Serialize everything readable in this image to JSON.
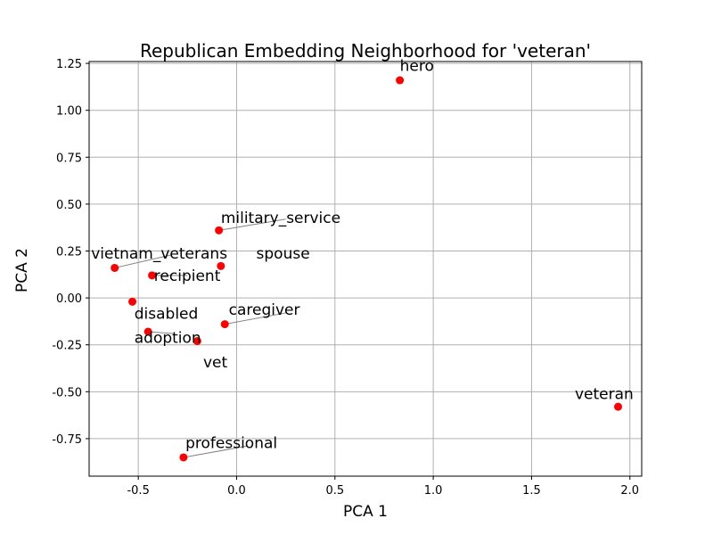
{
  "chart_data": {
    "type": "scatter",
    "title": "Republican Embedding Neighborhood for 'veteran'",
    "xlabel": "PCA 1",
    "ylabel": "PCA 2",
    "xlim": [
      -0.75,
      2.06
    ],
    "ylim": [
      -0.95,
      1.26
    ],
    "xticks": [
      "-0.5",
      "0.0",
      "0.5",
      "1.0",
      "1.5",
      "2.0"
    ],
    "xtick_values": [
      -0.5,
      0.0,
      0.5,
      1.0,
      1.5,
      2.0
    ],
    "yticks": [
      "-0.75",
      "-0.50",
      "-0.25",
      "0.00",
      "0.25",
      "0.50",
      "0.75",
      "1.00",
      "1.25"
    ],
    "ytick_values": [
      -0.75,
      -0.5,
      -0.25,
      0.0,
      0.25,
      0.5,
      0.75,
      1.0,
      1.25
    ],
    "grid": true,
    "point_color": "#ff0000",
    "points": [
      {
        "label": "hero",
        "x": 0.83,
        "y": 1.16,
        "label_x": 0.83,
        "label_y": 1.21
      },
      {
        "label": "military_service",
        "x": -0.09,
        "y": 0.36,
        "label_x": -0.08,
        "label_y": 0.4
      },
      {
        "label": "vietnam_veterans",
        "x": -0.62,
        "y": 0.16,
        "label_x": -0.74,
        "label_y": 0.21
      },
      {
        "label": "spouse",
        "x": -0.08,
        "y": 0.17,
        "label_x": 0.1,
        "label_y": 0.21
      },
      {
        "label": "recipient",
        "x": -0.43,
        "y": 0.12,
        "label_x": -0.42,
        "label_y": 0.09
      },
      {
        "label": "disabled",
        "x": -0.53,
        "y": -0.02,
        "label_x": -0.52,
        "label_y": -0.11
      },
      {
        "label": "caregiver",
        "x": -0.06,
        "y": -0.14,
        "label_x": -0.04,
        "label_y": -0.09
      },
      {
        "label": "adoption",
        "x": -0.45,
        "y": -0.18,
        "label_x": -0.52,
        "label_y": -0.24
      },
      {
        "label": "vet",
        "x": -0.2,
        "y": -0.23,
        "label_x": -0.17,
        "label_y": -0.37
      },
      {
        "label": "veteran",
        "x": 1.94,
        "y": -0.58,
        "label_x": 1.72,
        "label_y": -0.54
      },
      {
        "label": "professional",
        "x": -0.27,
        "y": -0.85,
        "label_x": -0.26,
        "label_y": -0.8
      }
    ],
    "leaders": [
      {
        "from": "military_service",
        "x2": 0.25,
        "y2": 0.42
      },
      {
        "from": "vietnam_veterans",
        "x2": -0.33,
        "y2": 0.23
      },
      {
        "from": "recipient",
        "x2": -0.25,
        "y2": 0.12
      },
      {
        "from": "caregiver",
        "x2": 0.25,
        "y2": -0.08
      },
      {
        "from": "adoption",
        "x2": -0.32,
        "y2": -0.19
      },
      {
        "from": "professional",
        "x2": 0.05,
        "y2": -0.79
      }
    ]
  }
}
